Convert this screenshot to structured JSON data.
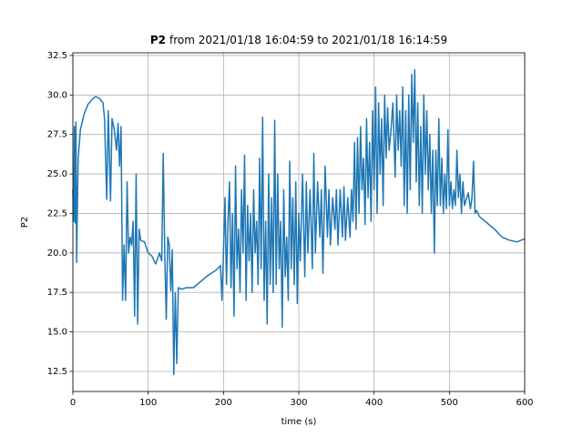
{
  "chart_data": {
    "type": "line",
    "title_bold": "P2",
    "title": "from 2021/01/18 16:04:59 to 2021/01/18 16:14:59",
    "x_label": "time (s)",
    "y_label": "P2",
    "color": "#1f77b4",
    "grid": true,
    "xlim": [
      0,
      600
    ],
    "xticks": [
      0,
      100,
      200,
      300,
      400,
      500,
      600
    ],
    "ylim": [
      11.23,
      32.67
    ],
    "yticks": [
      12.5,
      {
        "value": 15,
        "label": "15.0"
      },
      17.5,
      {
        "value": 20,
        "label": "20.0"
      },
      22.5,
      {
        "value": 25,
        "label": "25.0"
      },
      27.5,
      {
        "value": 30,
        "label": "30.0"
      },
      32.5
    ],
    "x": [
      0,
      1,
      2,
      3,
      4,
      5,
      6,
      7,
      10,
      15,
      20,
      25,
      30,
      35,
      40,
      42,
      45,
      47,
      50,
      52,
      55,
      58,
      60,
      62,
      64,
      66,
      68,
      70,
      72,
      74,
      76,
      78,
      80,
      82,
      84,
      86,
      88,
      90,
      95,
      100,
      105,
      110,
      115,
      118,
      120,
      122,
      124,
      126,
      128,
      130,
      132,
      134,
      136,
      138,
      140,
      145,
      150,
      160,
      170,
      180,
      190,
      196,
      198,
      200,
      202,
      204,
      206,
      208,
      210,
      212,
      214,
      216,
      218,
      220,
      222,
      224,
      226,
      228,
      230,
      232,
      234,
      236,
      238,
      240,
      242,
      244,
      246,
      248,
      250,
      252,
      254,
      256,
      258,
      260,
      262,
      264,
      266,
      268,
      270,
      272,
      274,
      276,
      278,
      280,
      282,
      284,
      286,
      288,
      290,
      292,
      294,
      296,
      298,
      300,
      302,
      305,
      308,
      310,
      312,
      315,
      318,
      320,
      322,
      325,
      328,
      330,
      332,
      335,
      338,
      340,
      342,
      345,
      348,
      350,
      352,
      355,
      358,
      360,
      362,
      365,
      368,
      370,
      372,
      374,
      376,
      378,
      380,
      382,
      384,
      386,
      388,
      390,
      392,
      394,
      396,
      398,
      400,
      402,
      404,
      406,
      408,
      410,
      412,
      414,
      416,
      418,
      420,
      422,
      425,
      428,
      430,
      432,
      434,
      436,
      438,
      440,
      442,
      444,
      446,
      448,
      450,
      452,
      454,
      456,
      458,
      460,
      462,
      464,
      466,
      468,
      470,
      472,
      474,
      476,
      478,
      480,
      482,
      484,
      486,
      488,
      490,
      492,
      494,
      496,
      498,
      500,
      502,
      504,
      506,
      508,
      510,
      512,
      514,
      516,
      518,
      520,
      525,
      528,
      530,
      532,
      534,
      536,
      540,
      550,
      560,
      570,
      580,
      590,
      600
    ],
    "values": [
      24,
      22,
      28,
      21.9,
      28.3,
      19.4,
      23,
      26,
      27.8,
      28.8,
      29.4,
      29.7,
      29.9,
      29.8,
      29.5,
      28.5,
      23.4,
      29,
      23.3,
      28.5,
      27.8,
      26.5,
      28.2,
      25.5,
      28,
      17,
      20.5,
      17,
      24.5,
      20,
      21,
      20.5,
      22,
      16,
      25,
      15.5,
      21.5,
      20.8,
      20.7,
      20,
      19.8,
      19.3,
      20,
      19.5,
      26.3,
      20,
      15.8,
      21,
      20.5,
      17.6,
      20.2,
      12.3,
      17.5,
      13,
      17.8,
      17.7,
      17.8,
      17.8,
      18.2,
      18.6,
      18.9,
      19.2,
      17,
      20,
      23.5,
      18,
      22,
      24.5,
      17.8,
      22.5,
      16,
      25.5,
      19,
      21.5,
      17.5,
      24,
      20,
      26.2,
      17,
      23,
      19.5,
      22.5,
      17.5,
      24,
      20,
      22,
      18,
      26,
      19,
      28.6,
      17,
      22,
      15.5,
      25,
      18,
      23.5,
      17.5,
      28.4,
      18,
      25,
      19,
      22,
      15.3,
      24,
      18.5,
      21,
      17,
      25.8,
      19,
      23.5,
      18,
      24.5,
      16.8,
      22.5,
      19.5,
      25,
      18.5,
      24.5,
      20,
      24,
      19,
      26.3,
      20,
      24.5,
      21,
      24,
      18.7,
      25.5,
      21,
      24,
      20.5,
      23.5,
      21.5,
      24,
      20.5,
      24,
      21,
      24.2,
      20.8,
      23.5,
      21,
      24,
      22,
      27,
      21.5,
      27.3,
      22.5,
      28,
      24,
      26,
      21.8,
      28.5,
      23.5,
      27,
      22,
      29,
      24,
      30.5,
      22.5,
      29.5,
      25,
      28.5,
      23,
      30,
      26,
      29.2,
      26.5,
      27.5,
      29.5,
      24.8,
      30,
      26.5,
      29,
      25.5,
      30.5,
      23,
      29,
      22.5,
      30,
      24,
      31.3,
      27,
      31.6,
      24.5,
      29.5,
      23,
      28,
      22.5,
      30,
      25,
      29,
      24,
      27.5,
      22.5,
      26.5,
      20,
      26.5,
      23,
      28.5,
      23,
      26,
      22.5,
      25,
      22.8,
      27.8,
      23,
      24.5,
      22.8,
      24,
      23,
      26.5,
      23.5,
      25,
      22.5,
      24.5,
      23,
      23.8,
      22.8,
      23.5,
      25.8,
      22.5,
      22.7,
      22.3,
      21.9,
      21.5,
      21,
      20.8,
      20.7,
      20.9
    ]
  }
}
